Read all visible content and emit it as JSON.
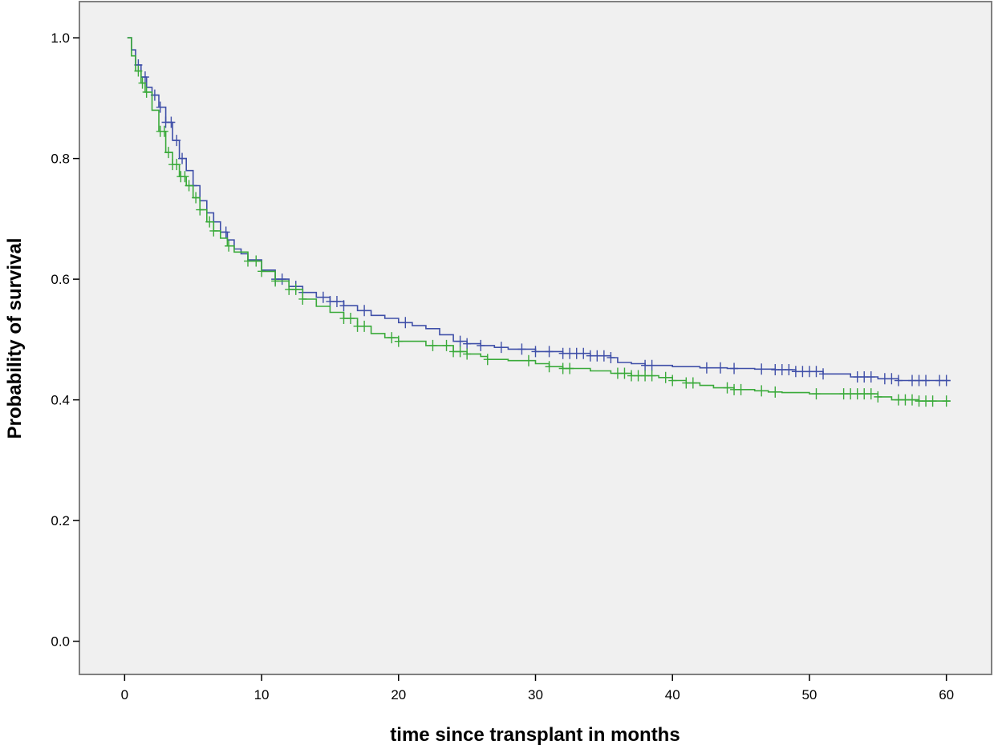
{
  "colors": {
    "background": "#ffffff",
    "plot_background": "#f0f0f0",
    "frame": "#808080",
    "axis": "#000000"
  },
  "chart_data": {
    "type": "line",
    "step": true,
    "title": "",
    "xlabel": "time since transplant in months",
    "ylabel": "Probability of survival",
    "xlim": [
      -3.3,
      63.3
    ],
    "ylim": [
      -0.055,
      1.06
    ],
    "x_ticks": [
      0,
      10,
      20,
      30,
      40,
      50,
      60
    ],
    "y_ticks": [
      0.0,
      0.2,
      0.4,
      0.6,
      0.8,
      1.0
    ],
    "x_tick_labels": [
      "0",
      "10",
      "20",
      "30",
      "40",
      "50",
      "60"
    ],
    "y_tick_labels": [
      "0.0",
      "0.2",
      "0.4",
      "0.6",
      "0.8",
      "1.0"
    ],
    "grid": false,
    "legend": "none",
    "series": [
      {
        "color": "#3f4fa8",
        "points": [
          [
            0.2,
            1.0
          ],
          [
            0.5,
            0.98
          ],
          [
            0.8,
            0.955
          ],
          [
            1.2,
            0.935
          ],
          [
            1.6,
            0.918
          ],
          [
            2.0,
            0.905
          ],
          [
            2.5,
            0.885
          ],
          [
            3.0,
            0.86
          ],
          [
            3.5,
            0.83
          ],
          [
            4.0,
            0.8
          ],
          [
            4.5,
            0.78
          ],
          [
            5.0,
            0.755
          ],
          [
            5.5,
            0.73
          ],
          [
            6.0,
            0.71
          ],
          [
            6.5,
            0.695
          ],
          [
            7.0,
            0.678
          ],
          [
            7.5,
            0.665
          ],
          [
            8.0,
            0.65
          ],
          [
            8.5,
            0.642
          ],
          [
            9.0,
            0.632
          ],
          [
            10.0,
            0.615
          ],
          [
            11.0,
            0.6
          ],
          [
            12.0,
            0.588
          ],
          [
            13.0,
            0.578
          ],
          [
            14.0,
            0.57
          ],
          [
            15.0,
            0.563
          ],
          [
            16.0,
            0.556
          ],
          [
            17.0,
            0.548
          ],
          [
            18.0,
            0.54
          ],
          [
            19.0,
            0.535
          ],
          [
            20.0,
            0.528
          ],
          [
            21.0,
            0.523
          ],
          [
            22.0,
            0.518
          ],
          [
            23.0,
            0.508
          ],
          [
            24.0,
            0.497
          ],
          [
            25.0,
            0.493
          ],
          [
            26.0,
            0.49
          ],
          [
            27.0,
            0.487
          ],
          [
            28.0,
            0.484
          ],
          [
            30.0,
            0.48
          ],
          [
            32.0,
            0.477
          ],
          [
            34.0,
            0.473
          ],
          [
            35.5,
            0.47
          ],
          [
            36.0,
            0.462
          ],
          [
            37.0,
            0.46
          ],
          [
            38.0,
            0.457
          ],
          [
            40.0,
            0.455
          ],
          [
            42.0,
            0.453
          ],
          [
            44.0,
            0.452
          ],
          [
            46.0,
            0.451
          ],
          [
            47.5,
            0.45
          ],
          [
            49.0,
            0.447
          ],
          [
            51.0,
            0.443
          ],
          [
            53.0,
            0.438
          ],
          [
            55.0,
            0.435
          ],
          [
            56.5,
            0.432
          ],
          [
            58.0,
            0.432
          ],
          [
            60.3,
            0.432
          ]
        ],
        "censor_x": [
          1.0,
          1.5,
          2.2,
          2.6,
          3.0,
          3.4,
          3.8,
          4.2,
          5.0,
          6.5,
          7.4,
          11.0,
          11.5,
          12.5,
          13.0,
          14.5,
          15.0,
          15.5,
          16.0,
          17.5,
          20.5,
          24.5,
          25.0,
          26.0,
          27.5,
          29.0,
          30.0,
          31.0,
          32.0,
          32.5,
          33.0,
          33.5,
          34.0,
          34.5,
          35.0,
          35.5,
          38.0,
          38.5,
          42.5,
          43.5,
          44.5,
          46.5,
          47.5,
          48.0,
          48.5,
          49.0,
          49.5,
          50.0,
          50.5,
          51.0,
          53.5,
          54.0,
          54.5,
          55.5,
          56.0,
          56.5,
          57.5,
          58.0,
          58.5,
          59.5,
          60.0
        ]
      },
      {
        "color": "#3aaa3a",
        "points": [
          [
            0.2,
            1.0
          ],
          [
            0.5,
            0.97
          ],
          [
            0.8,
            0.945
          ],
          [
            1.2,
            0.925
          ],
          [
            1.5,
            0.91
          ],
          [
            2.0,
            0.88
          ],
          [
            2.5,
            0.845
          ],
          [
            3.0,
            0.81
          ],
          [
            3.5,
            0.79
          ],
          [
            4.0,
            0.77
          ],
          [
            4.5,
            0.755
          ],
          [
            5.0,
            0.735
          ],
          [
            5.5,
            0.715
          ],
          [
            6.0,
            0.695
          ],
          [
            6.5,
            0.68
          ],
          [
            7.0,
            0.668
          ],
          [
            7.5,
            0.655
          ],
          [
            8.0,
            0.645
          ],
          [
            9.0,
            0.63
          ],
          [
            10.0,
            0.613
          ],
          [
            11.0,
            0.597
          ],
          [
            12.0,
            0.583
          ],
          [
            13.0,
            0.567
          ],
          [
            14.0,
            0.555
          ],
          [
            15.0,
            0.545
          ],
          [
            16.0,
            0.535
          ],
          [
            17.0,
            0.522
          ],
          [
            18.0,
            0.51
          ],
          [
            19.0,
            0.503
          ],
          [
            20.0,
            0.497
          ],
          [
            22.0,
            0.49
          ],
          [
            24.0,
            0.48
          ],
          [
            25.0,
            0.476
          ],
          [
            26.0,
            0.472
          ],
          [
            26.5,
            0.467
          ],
          [
            28.0,
            0.465
          ],
          [
            30.0,
            0.46
          ],
          [
            31.0,
            0.455
          ],
          [
            32.0,
            0.452
          ],
          [
            34.0,
            0.448
          ],
          [
            35.5,
            0.444
          ],
          [
            37.0,
            0.44
          ],
          [
            39.0,
            0.437
          ],
          [
            40.0,
            0.432
          ],
          [
            41.0,
            0.428
          ],
          [
            42.0,
            0.424
          ],
          [
            43.0,
            0.42
          ],
          [
            44.5,
            0.417
          ],
          [
            46.0,
            0.415
          ],
          [
            47.0,
            0.413
          ],
          [
            48.0,
            0.412
          ],
          [
            50.0,
            0.41
          ],
          [
            52.0,
            0.41
          ],
          [
            54.0,
            0.41
          ],
          [
            55.0,
            0.405
          ],
          [
            56.0,
            0.4
          ],
          [
            58.0,
            0.398
          ],
          [
            60.3,
            0.398
          ]
        ],
        "censor_x": [
          1.0,
          1.3,
          1.6,
          2.6,
          2.9,
          3.2,
          3.5,
          3.8,
          4.1,
          4.4,
          4.7,
          5.2,
          5.5,
          6.2,
          6.5,
          7.6,
          9.0,
          9.6,
          10.0,
          11.0,
          12.0,
          12.5,
          13.0,
          16.0,
          16.5,
          17.0,
          17.5,
          19.5,
          20.0,
          22.5,
          23.5,
          24.0,
          24.5,
          25.0,
          26.5,
          29.5,
          31.0,
          32.0,
          32.5,
          36.0,
          36.5,
          37.0,
          37.5,
          38.0,
          38.5,
          39.5,
          40.0,
          41.0,
          41.5,
          44.0,
          44.5,
          45.0,
          46.5,
          47.5,
          50.5,
          52.5,
          53.0,
          53.5,
          54.0,
          54.5,
          55.0,
          56.5,
          57.0,
          57.5,
          58.0,
          58.5,
          59.0,
          60.0
        ]
      }
    ]
  }
}
